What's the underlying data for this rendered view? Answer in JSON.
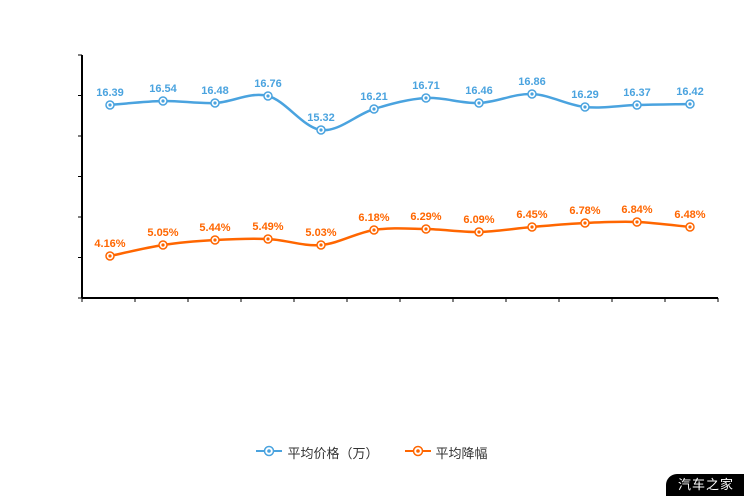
{
  "chart_data": {
    "type": "line",
    "title": "",
    "xlabel": "",
    "ylabel": "",
    "x_axis_labels_visible": false,
    "y_axis_labels_visible": false,
    "grid": false,
    "legend_position": "bottom",
    "point_count": 12,
    "series": [
      {
        "name": "平均价格（万）",
        "color": "#4aa3df",
        "suffix": "",
        "decimals": 2,
        "values": [
          16.39,
          16.54,
          16.48,
          16.76,
          15.32,
          16.21,
          16.71,
          16.46,
          16.86,
          16.29,
          16.37,
          16.42
        ],
        "band": [
          94,
          130
        ]
      },
      {
        "name": "平均降幅",
        "color": "#ff6600",
        "suffix": "%",
        "decimals": 2,
        "values": [
          4.16,
          5.05,
          5.44,
          5.49,
          5.03,
          6.18,
          6.29,
          6.09,
          6.45,
          6.78,
          6.84,
          6.48
        ],
        "band": [
          222,
          256
        ]
      }
    ]
  },
  "watermark": {
    "text": "汽车之家"
  },
  "colors": {
    "axis": "#000000",
    "background": "#ffffff"
  }
}
